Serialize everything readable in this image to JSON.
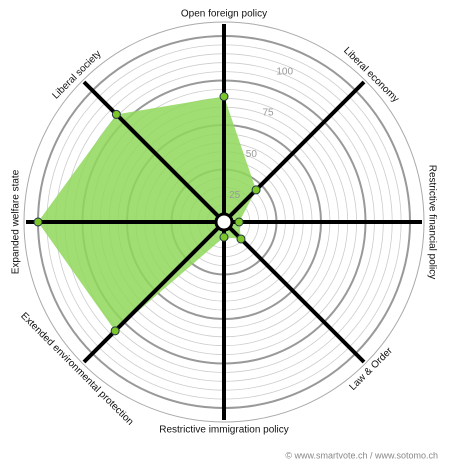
{
  "chart_data": {
    "type": "radar",
    "categories": [
      "Open foreign policy",
      "Liberal economy",
      "Restrictive financial policy",
      "Law & Order",
      "Restrictive immigration policy",
      "Extended environmental protection",
      "Expanded welfare state",
      "Liberal society"
    ],
    "values": [
      66,
      21,
      4,
      9,
      4,
      82,
      100,
      81
    ],
    "color": "#8fd85a",
    "ylim": [
      0,
      100
    ],
    "yticks": [
      25,
      50,
      75,
      100
    ],
    "footer": "© www.smartvote.ch / www.sotomo.ch"
  }
}
